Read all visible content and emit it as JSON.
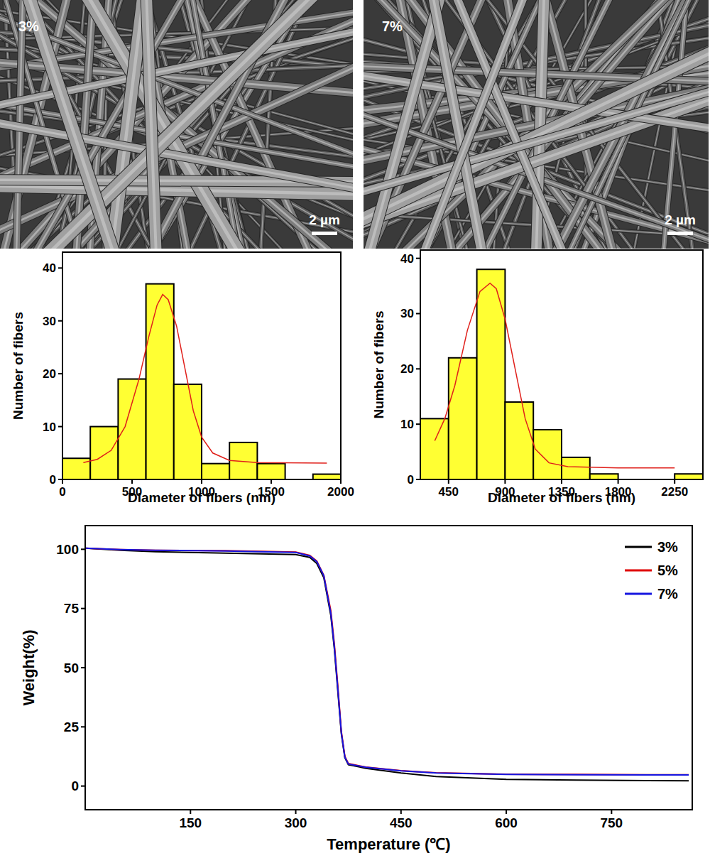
{
  "images": [
    {
      "label": "3%",
      "scale_bar": "2 µm"
    },
    {
      "label": "7%",
      "scale_bar": "2 µm"
    }
  ],
  "chart_data": [
    {
      "type": "histogram",
      "x_label": "Diameter of fibers (nm)",
      "y_label": "Number of fibers",
      "bins": [
        0,
        200,
        400,
        600,
        800,
        1000,
        1200,
        1400,
        1600,
        1800,
        2000
      ],
      "counts": [
        4,
        10,
        19,
        37,
        18,
        3,
        7,
        3,
        0,
        1
      ],
      "color": "#ffff33",
      "xlim": [
        0,
        2000
      ],
      "xticks": [
        0,
        500,
        1000,
        1500,
        2000
      ],
      "ylim": [
        0,
        43
      ],
      "yticks": [
        0,
        10,
        20,
        30,
        40
      ],
      "curve": {
        "color": "#e0201b",
        "x": [
          150,
          250,
          350,
          450,
          550,
          620,
          680,
          720,
          760,
          820,
          880,
          940,
          1000,
          1080,
          1200,
          1400,
          1900
        ],
        "values": [
          3.2,
          3.8,
          5.5,
          10,
          19,
          27,
          33,
          35,
          34,
          29,
          21,
          13,
          8,
          5,
          3.6,
          3.2,
          3.1
        ]
      }
    },
    {
      "type": "histogram",
      "x_label": "Diameter of fibers (nm)",
      "y_label": "Number of fibers",
      "bins": [
        225,
        450,
        675,
        900,
        1125,
        1350,
        1575,
        1800,
        2025,
        2250,
        2475
      ],
      "counts": [
        11,
        22,
        38,
        14,
        9,
        4,
        1,
        0,
        0,
        1
      ],
      "color": "#ffff33",
      "xlim": [
        225,
        2475
      ],
      "xticks": [
        450,
        900,
        1350,
        1800,
        2250
      ],
      "ylim": [
        0,
        41.5
      ],
      "yticks": [
        0,
        10,
        20,
        30,
        40
      ],
      "curve": {
        "color": "#e0201b",
        "x": [
          340,
          420,
          500,
          600,
          700,
          780,
          830,
          900,
          980,
          1060,
          1140,
          1250,
          1400,
          1800,
          2250
        ],
        "values": [
          7,
          11,
          17,
          27,
          34,
          35.5,
          34.5,
          29,
          20,
          11,
          5.5,
          3,
          2.3,
          2.1,
          2.1
        ]
      }
    },
    {
      "type": "line",
      "x_label": "Temperature (℃)",
      "y_label": "Weight(%)",
      "xlim": [
        0,
        865
      ],
      "xticks": [
        150,
        300,
        450,
        600,
        750
      ],
      "ylim": [
        -10,
        110
      ],
      "yticks": [
        0,
        25,
        50,
        75,
        100
      ],
      "legend": "top-right",
      "x": [
        0,
        50,
        100,
        200,
        300,
        320,
        330,
        340,
        350,
        355,
        360,
        365,
        370,
        375,
        400,
        450,
        500,
        600,
        700,
        800,
        860
      ],
      "series": [
        {
          "name": "3%",
          "color": "#000000",
          "values": [
            100.5,
            99.6,
            99,
            98.4,
            97.8,
            96.6,
            94,
            88,
            72,
            58,
            40,
            22,
            12,
            9,
            7.5,
            5.5,
            4,
            2.8,
            2.5,
            2.3,
            2.2
          ]
        },
        {
          "name": "5%",
          "color": "#e00000",
          "values": [
            100.5,
            99.9,
            99.6,
            99.4,
            98.8,
            97.4,
            95,
            89,
            74,
            60,
            42,
            23,
            12.5,
            9.5,
            8,
            6.5,
            5.6,
            5,
            4.9,
            4.8,
            4.8
          ]
        },
        {
          "name": "7%",
          "color": "#1515e0",
          "values": [
            100.5,
            99.9,
            99.6,
            99.3,
            98.7,
            97.2,
            94.8,
            88.8,
            73,
            59,
            41,
            22.5,
            12.2,
            9.3,
            7.9,
            6.4,
            5.5,
            4.9,
            4.8,
            4.7,
            4.7
          ]
        }
      ]
    }
  ]
}
